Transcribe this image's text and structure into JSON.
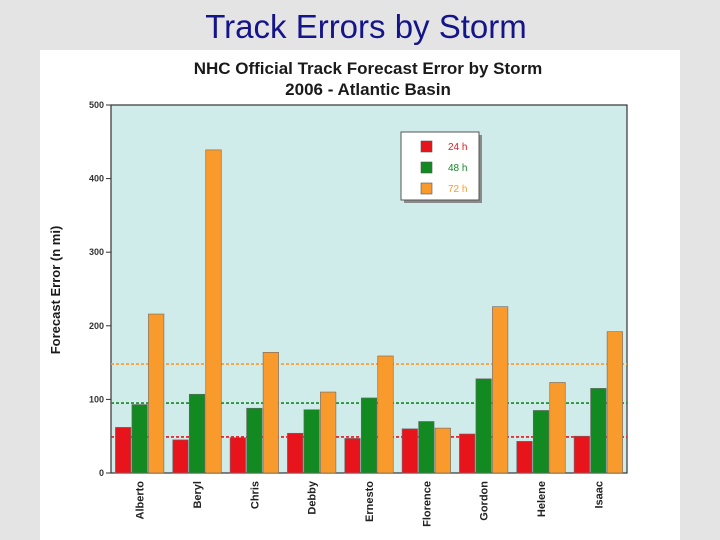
{
  "slide": {
    "title": "Track Errors by Storm"
  },
  "chart_data": {
    "type": "bar",
    "title": "NHC Official Track Forecast Error by Storm",
    "subtitle": "2006 - Atlantic Basin",
    "xlabel": "",
    "ylabel": "Forecast Error (n mi)",
    "ylim": [
      0,
      500
    ],
    "yticks": [
      0,
      100,
      200,
      300,
      400,
      500
    ],
    "grid": false,
    "legend_position": "top-right",
    "categories": [
      "Alberto",
      "Beryl",
      "Chris",
      "Debby",
      "Ernesto",
      "Florence",
      "Gordon",
      "Helene",
      "Isaac"
    ],
    "series": [
      {
        "name": "24 h",
        "color": "#e8141c",
        "values": [
          62,
          45,
          48,
          54,
          47,
          60,
          53,
          43,
          50
        ]
      },
      {
        "name": "48 h",
        "color": "#128a21",
        "values": [
          93,
          107,
          88,
          86,
          102,
          70,
          128,
          85,
          115
        ]
      },
      {
        "name": "72 h",
        "color": "#f99a2c",
        "values": [
          216,
          439,
          164,
          110,
          159,
          61,
          226,
          123,
          192
        ]
      }
    ],
    "reference_lines": [
      {
        "series": "24 h",
        "value": 49,
        "color": "#e8141c",
        "style": "dashed"
      },
      {
        "series": "48 h",
        "value": 95,
        "color": "#128a21",
        "style": "dashed"
      },
      {
        "series": "72 h",
        "value": 148,
        "color": "#f99a2c",
        "style": "dashed"
      }
    ],
    "colors": {
      "plot_background": "#d0ecea",
      "title_text": "#15158a"
    }
  }
}
